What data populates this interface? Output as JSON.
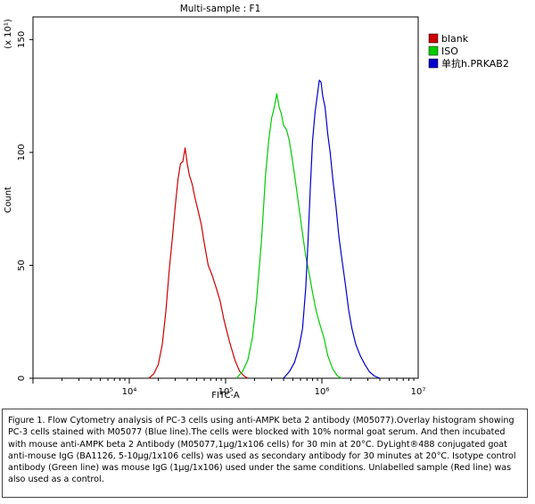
{
  "chart_data": {
    "type": "line",
    "title": "Multi-sample : F1",
    "xlabel": "FITC-A",
    "ylabel": "Count",
    "y_multiplier_label": "(x 10¹)",
    "x_scale": "log",
    "xlim": [
      1000,
      10000000
    ],
    "ylim": [
      0,
      160
    ],
    "x_tick_labels": [
      "10⁴",
      "10⁵",
      "10⁶",
      "10⁷"
    ],
    "x_tick_values": [
      10000,
      100000,
      1000000,
      10000000
    ],
    "y_tick_values": [
      0,
      50,
      100,
      150
    ],
    "legend_position": "top-right",
    "series": [
      {
        "name": "blank",
        "color": "#cc0000",
        "points": [
          [
            16000,
            0
          ],
          [
            18000,
            2
          ],
          [
            20000,
            6
          ],
          [
            22000,
            15
          ],
          [
            24000,
            30
          ],
          [
            26000,
            48
          ],
          [
            28000,
            62
          ],
          [
            30000,
            76
          ],
          [
            32000,
            88
          ],
          [
            34000,
            95
          ],
          [
            36000,
            96
          ],
          [
            38000,
            102
          ],
          [
            40000,
            95
          ],
          [
            42000,
            90
          ],
          [
            45000,
            86
          ],
          [
            48000,
            80
          ],
          [
            52000,
            74
          ],
          [
            56000,
            68
          ],
          [
            60000,
            60
          ],
          [
            66000,
            50
          ],
          [
            72000,
            46
          ],
          [
            80000,
            40
          ],
          [
            88000,
            34
          ],
          [
            96000,
            26
          ],
          [
            110000,
            16
          ],
          [
            125000,
            8
          ],
          [
            140000,
            3
          ],
          [
            155000,
            1
          ],
          [
            170000,
            0
          ]
        ]
      },
      {
        "name": "ISO",
        "color": "#00cc00",
        "points": [
          [
            130000,
            0
          ],
          [
            150000,
            3
          ],
          [
            170000,
            8
          ],
          [
            190000,
            18
          ],
          [
            210000,
            35
          ],
          [
            235000,
            60
          ],
          [
            260000,
            90
          ],
          [
            280000,
            105
          ],
          [
            300000,
            115
          ],
          [
            320000,
            120
          ],
          [
            340000,
            126
          ],
          [
            360000,
            120
          ],
          [
            380000,
            117
          ],
          [
            400000,
            112
          ],
          [
            430000,
            110
          ],
          [
            460000,
            105
          ],
          [
            500000,
            95
          ],
          [
            540000,
            85
          ],
          [
            580000,
            75
          ],
          [
            630000,
            64
          ],
          [
            680000,
            54
          ],
          [
            740000,
            46
          ],
          [
            800000,
            38
          ],
          [
            870000,
            30
          ],
          [
            950000,
            24
          ],
          [
            1050000,
            18
          ],
          [
            1150000,
            10
          ],
          [
            1300000,
            4
          ],
          [
            1450000,
            1
          ],
          [
            1600000,
            0
          ]
        ]
      },
      {
        "name": "单抗h.PRKAB2",
        "color": "#0000cc",
        "points": [
          [
            400000,
            0
          ],
          [
            460000,
            3
          ],
          [
            520000,
            7
          ],
          [
            580000,
            14
          ],
          [
            630000,
            22
          ],
          [
            680000,
            40
          ],
          [
            720000,
            62
          ],
          [
            760000,
            85
          ],
          [
            800000,
            105
          ],
          [
            850000,
            118
          ],
          [
            900000,
            126
          ],
          [
            940000,
            132
          ],
          [
            980000,
            131
          ],
          [
            1020000,
            125
          ],
          [
            1080000,
            120
          ],
          [
            1150000,
            108
          ],
          [
            1220000,
            100
          ],
          [
            1300000,
            88
          ],
          [
            1400000,
            76
          ],
          [
            1500000,
            63
          ],
          [
            1600000,
            54
          ],
          [
            1750000,
            42
          ],
          [
            1900000,
            30
          ],
          [
            2050000,
            22
          ],
          [
            2250000,
            15
          ],
          [
            2500000,
            10
          ],
          [
            2800000,
            6
          ],
          [
            3100000,
            3
          ],
          [
            3500000,
            1
          ],
          [
            4000000,
            0
          ]
        ]
      }
    ]
  },
  "caption": {
    "text": "Figure 1. Flow Cytometry analysis of PC-3 cells using anti-AMPK beta 2 antibody (M05077).Overlay histogram showing PC-3 cells stained with M05077 (Blue line).The cells were blocked with 10% normal goat serum. And then incubated with mouse anti-AMPK beta 2 Antibody (M05077,1μg/1x106 cells) for 30 min at 20°C. DyLight®488 conjugated goat anti-mouse IgG (BA1126, 5-10μg/1x106 cells) was used as secondary antibody for 30 minutes at 20°C. Isotype control antibody (Green line) was mouse IgG (1μg/1x106) used under the same conditions. Unlabelled sample (Red line) was also used as a control."
  }
}
